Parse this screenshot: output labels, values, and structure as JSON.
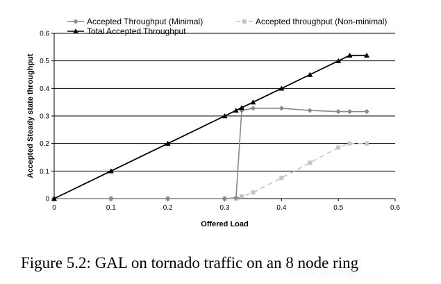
{
  "chart_data": {
    "type": "line",
    "xlabel": "Offered Load",
    "ylabel": "Accepted Steady state throughput",
    "xlim": [
      0,
      0.6
    ],
    "ylim": [
      0,
      0.6
    ],
    "xticks": [
      "0",
      "0.1",
      "0.2",
      "0.3",
      "0.4",
      "0.5",
      "0.6"
    ],
    "yticks": [
      "0",
      "0.1",
      "0.2",
      "0.3",
      "0.4",
      "0.5",
      "0.6"
    ],
    "grid": "horizontal",
    "legend_position": "top",
    "series": [
      {
        "name": "Accepted Throughput (Minimal)",
        "color": "#888888",
        "marker": "diamond",
        "dashed": false,
        "x": [
          0,
          0.1,
          0.2,
          0.3,
          0.32,
          0.33,
          0.35,
          0.4,
          0.45,
          0.5,
          0.52,
          0.55
        ],
        "y": [
          0,
          0,
          0,
          0,
          0.003,
          0.32,
          0.328,
          0.328,
          0.32,
          0.316,
          0.316,
          0.316
        ]
      },
      {
        "name": "Accepted  throughput (Non-minimal)",
        "color": "#c4c4c4",
        "marker": "square",
        "dashed": true,
        "x": [
          0,
          0.1,
          0.2,
          0.3,
          0.32,
          0.33,
          0.35,
          0.4,
          0.45,
          0.5,
          0.52,
          0.55
        ],
        "y": [
          0,
          0,
          0,
          0,
          0,
          0.008,
          0.022,
          0.075,
          0.13,
          0.185,
          0.2,
          0.2
        ]
      },
      {
        "name": "Total Accepted Throughput",
        "color": "#000000",
        "marker": "triangle",
        "dashed": false,
        "x": [
          0,
          0.1,
          0.2,
          0.3,
          0.32,
          0.33,
          0.35,
          0.4,
          0.45,
          0.5,
          0.52,
          0.55
        ],
        "y": [
          0,
          0.1,
          0.2,
          0.3,
          0.32,
          0.33,
          0.35,
          0.4,
          0.45,
          0.5,
          0.52,
          0.52
        ]
      }
    ]
  },
  "caption": "Figure 5.2: GAL on tornado traffic on an 8 node ring",
  "watermark": "CSDN @正在输入......"
}
